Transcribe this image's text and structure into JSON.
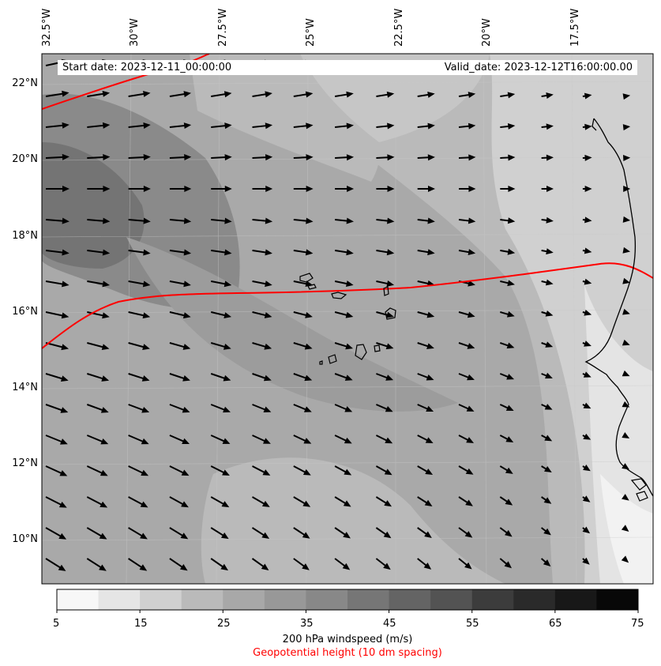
{
  "header": {
    "start_date": "Start date: 2023-12-11_00:00:00",
    "valid_date": "Valid_date: 2023-12-12T16:00:00.00"
  },
  "axes": {
    "lon_labels": [
      "32.5°W",
      "30°W",
      "27.5°W",
      "25°W",
      "22.5°W",
      "20°W",
      "17.5°W"
    ],
    "lat_labels": [
      "22°N",
      "20°N",
      "18°N",
      "16°N",
      "14°N",
      "12°N",
      "10°N"
    ]
  },
  "colorbar": {
    "ticks": [
      "5",
      "15",
      "25",
      "35",
      "45",
      "55",
      "65",
      "75"
    ],
    "colors": [
      "#f7f7f7",
      "#e5e5e5",
      "#d0d0d0",
      "#bababa",
      "#a8a8a8",
      "#989898",
      "#888888",
      "#767676",
      "#646464",
      "#535353",
      "#3c3c3c",
      "#2a2a2a",
      "#181818",
      "#080808"
    ],
    "label": "200 hPa windspeed (m/s)",
    "sublabel": "Geopotential height (10 dm spacing)",
    "sublabel_color": "#ff0000"
  },
  "map": {
    "contour_color": "#ff0000",
    "coast_color": "#000000",
    "arrow_color": "#000000"
  }
}
